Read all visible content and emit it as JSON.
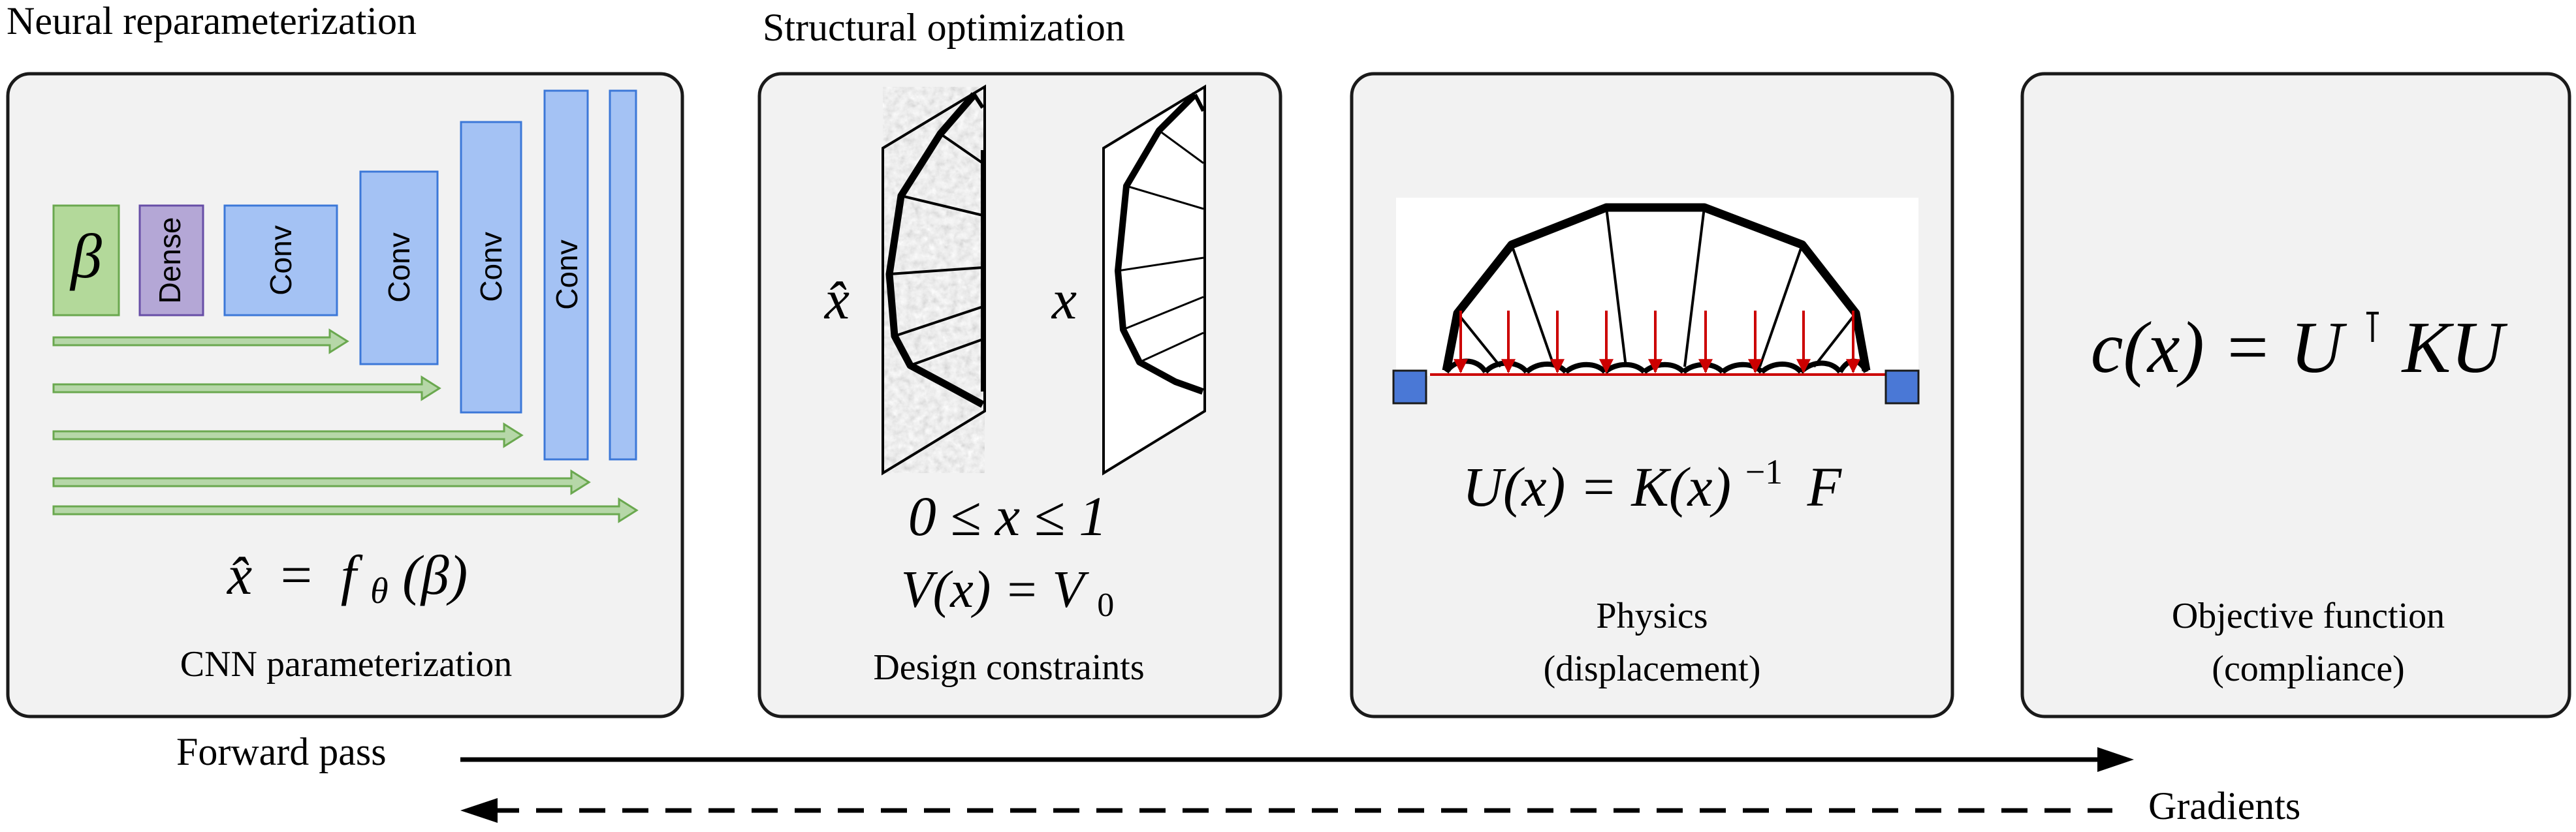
{
  "sections": {
    "neural_title": "Neural reparameterization",
    "structural_title": "Structural optimization"
  },
  "cnn": {
    "beta_label": "β",
    "dense_label": "Dense",
    "conv_label": "Conv",
    "caption": "CNN parameterization",
    "eq_lhs": "x̂",
    "eq_eq": "=",
    "eq_f": "f",
    "eq_sub": "θ",
    "eq_arg": "(β)"
  },
  "design": {
    "xhat_label": "x̂",
    "x_label": "x",
    "bound_eq": "0 ≤ x ≤ 1",
    "volume_eq": "V(x) = V",
    "volume_sub": "0",
    "caption": "Design constraints"
  },
  "physics": {
    "eq_main": "U(x) = K(x)",
    "eq_sup": "−1",
    "eq_tail": "F",
    "caption_line1": "Physics",
    "caption_line2": "(displacement)"
  },
  "objective": {
    "eq_main": "c(x) = U",
    "eq_sup": "⊺",
    "eq_tail": "KU",
    "caption_line1": "Objective function",
    "caption_line2": "(compliance)"
  },
  "flow": {
    "forward_label": "Forward pass",
    "gradients_label": "Gradients"
  },
  "colors": {
    "panel_fill": "#f2f2f2",
    "beta_fill": "#b3d99a",
    "dense_fill": "#b4a7d6",
    "conv_fill": "#a4c2f4",
    "skip_arrow": "#6aa84f",
    "load_arrow": "#cc0000",
    "support_fill": "#4a78d6"
  }
}
